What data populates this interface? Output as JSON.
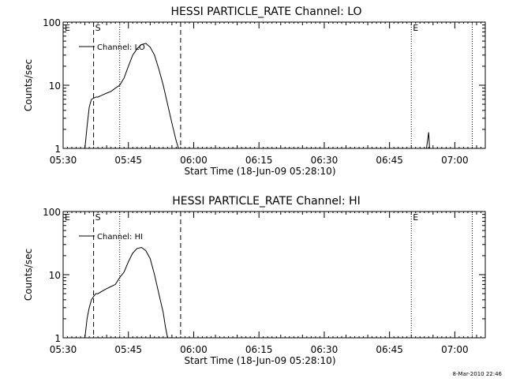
{
  "chart_data": [
    {
      "type": "line",
      "title": "HESSI PARTICLE_RATE Channel: LO",
      "xlabel": "Start Time (18-Jun-09 05:28:10)",
      "ylabel": "Counts/sec",
      "yscale": "log",
      "ylim": [
        1,
        100
      ],
      "xlim": [
        "05:30",
        "07:07"
      ],
      "xticks": [
        "05:30",
        "05:45",
        "06:00",
        "06:15",
        "06:30",
        "06:45",
        "07:00"
      ],
      "yticks": [
        "1",
        "10",
        "100"
      ],
      "grid": false,
      "legend": {
        "label": "Channel: LO",
        "placement": "top-left"
      },
      "markers": [
        {
          "label": "E",
          "time": "05:30",
          "style": "none"
        },
        {
          "label": "S",
          "time": "05:37",
          "style": "dashed"
        },
        {
          "label": "",
          "time": "05:43",
          "style": "dotted"
        },
        {
          "label": "",
          "time": "05:57",
          "style": "dashed"
        },
        {
          "label": "E",
          "time": "06:50",
          "style": "dotted"
        },
        {
          "label": "",
          "time": "07:04",
          "style": "dotted"
        }
      ],
      "series": [
        {
          "x": [
            "05:35",
            "05:35.5",
            "05:36",
            "05:36.5",
            "05:37",
            "05:37.5",
            "05:38",
            "05:39",
            "05:40",
            "05:41",
            "05:42",
            "05:43",
            "05:44",
            "05:45",
            "05:46",
            "05:47",
            "05:48",
            "05:49",
            "05:50",
            "05:51",
            "05:52",
            "05:53",
            "05:54",
            "05:55",
            "05:56",
            "05:56.5"
          ],
          "y": [
            1,
            2.2,
            4.5,
            6,
            6.2,
            6.5,
            6.5,
            7,
            7.5,
            8,
            9,
            10,
            13,
            20,
            30,
            38,
            44,
            46,
            40,
            30,
            18,
            10,
            5,
            2.5,
            1.3,
            1
          ]
        },
        {
          "x": [
            "06:53.5",
            "06:54",
            "06:54.2"
          ],
          "y": [
            1,
            1.8,
            1
          ]
        }
      ]
    },
    {
      "type": "line",
      "title": "HESSI PARTICLE_RATE Channel: HI",
      "xlabel": "Start Time (18-Jun-09 05:28:10)",
      "ylabel": "Counts/sec",
      "yscale": "log",
      "ylim": [
        1,
        100
      ],
      "xlim": [
        "05:30",
        "07:07"
      ],
      "xticks": [
        "05:30",
        "05:45",
        "06:00",
        "06:15",
        "06:30",
        "06:45",
        "07:00"
      ],
      "yticks": [
        "1",
        "10",
        "100"
      ],
      "grid": false,
      "legend": {
        "label": "Channel: HI",
        "placement": "top-left"
      },
      "markers": [
        {
          "label": "E",
          "time": "05:30",
          "style": "none"
        },
        {
          "label": "S",
          "time": "05:37",
          "style": "dashed"
        },
        {
          "label": "",
          "time": "05:43",
          "style": "dotted"
        },
        {
          "label": "",
          "time": "05:57",
          "style": "dashed"
        },
        {
          "label": "E",
          "time": "06:50",
          "style": "dotted"
        },
        {
          "label": "",
          "time": "07:04",
          "style": "dotted"
        }
      ],
      "series": [
        {
          "x": [
            "05:35",
            "05:35.5",
            "05:36",
            "05:36.5",
            "05:37",
            "05:37.5",
            "05:38",
            "05:39",
            "05:40",
            "05:41",
            "05:42",
            "05:43",
            "05:44",
            "05:45",
            "05:46",
            "05:47",
            "05:48",
            "05:49",
            "05:50",
            "05:51",
            "05:52",
            "05:53",
            "05:53.5",
            "05:54"
          ],
          "y": [
            1,
            2,
            3,
            4,
            4.5,
            5,
            5,
            5.5,
            6,
            6.5,
            7,
            9,
            11,
            16,
            22,
            26,
            27,
            24,
            18,
            10,
            5,
            2.5,
            1.5,
            1
          ]
        }
      ]
    }
  ],
  "footer": {
    "timestamp": "8-Mar-2010 22:46"
  }
}
